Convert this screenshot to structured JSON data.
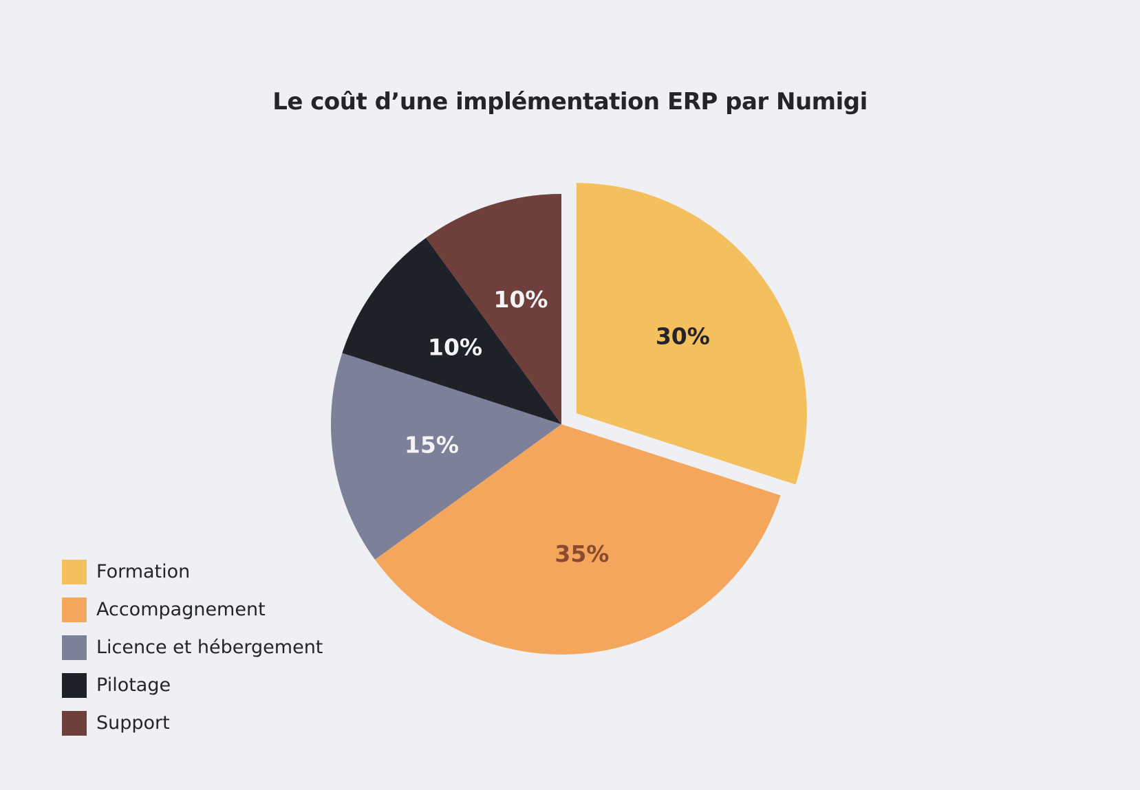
{
  "chart_data": {
    "type": "pie",
    "title": "Le coût d’une implémentation ERP par Numigi",
    "legend_position": "bottom-left",
    "start_angle_deg": 0,
    "direction": "clockwise",
    "slices": [
      {
        "label": "Formation",
        "value": 30,
        "display": "30%",
        "color": "#f4bf5d",
        "label_color": "#23252b",
        "exploded": true
      },
      {
        "label": "Accompagnement",
        "value": 35,
        "display": "35%",
        "color": "#f5a65d",
        "label_color": "#8a4a30",
        "exploded": false
      },
      {
        "label": "Licence et hébergement",
        "value": 15,
        "display": "15%",
        "color": "#7c8098",
        "label_color": "#f4f4f7",
        "exploded": false
      },
      {
        "label": "Pilotage",
        "value": 10,
        "display": "10%",
        "color": "#1f2128",
        "label_color": "#f4f4f7",
        "exploded": false
      },
      {
        "label": "Support",
        "value": 10,
        "display": "10%",
        "color": "#6f3f3c",
        "label_color": "#f4f4f7",
        "exploded": false
      }
    ]
  }
}
